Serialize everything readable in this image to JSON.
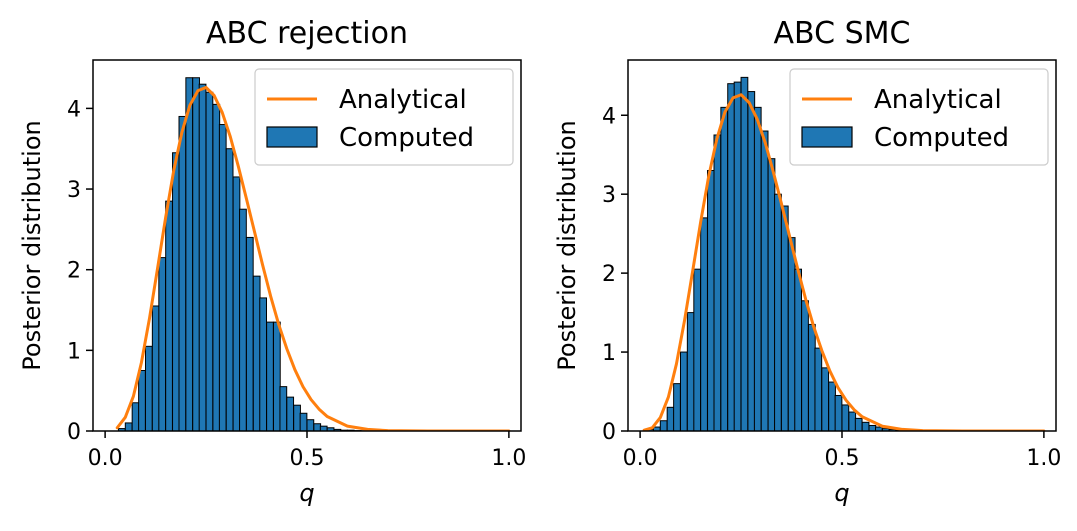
{
  "chart_data": [
    {
      "type": "bar",
      "title": "ABC rejection",
      "xlabel": "q",
      "ylabel": "Posterior distribution",
      "xlim": [
        -0.03,
        1.03
      ],
      "ylim": [
        0,
        4.6
      ],
      "xticks": [
        0.0,
        0.5,
        1.0
      ],
      "xtick_labels": [
        "0.0",
        "0.5",
        "1.0"
      ],
      "yticks": [
        0,
        1,
        2,
        3,
        4
      ],
      "ytick_labels": [
        "0",
        "1",
        "2",
        "3",
        "4"
      ],
      "legend_position": "top-right",
      "series": [
        {
          "name": "Computed",
          "kind": "histogram",
          "color": "#1f77b4",
          "bin_width": 0.0167,
          "bin_starts": [
            0.033,
            0.05,
            0.067,
            0.083,
            0.1,
            0.117,
            0.133,
            0.15,
            0.167,
            0.183,
            0.2,
            0.217,
            0.233,
            0.25,
            0.267,
            0.283,
            0.3,
            0.317,
            0.333,
            0.35,
            0.367,
            0.383,
            0.4,
            0.417,
            0.433,
            0.45,
            0.467,
            0.483,
            0.5,
            0.517,
            0.533,
            0.55,
            0.567,
            0.583,
            0.6,
            0.617,
            0.633,
            0.65,
            0.667,
            0.683
          ],
          "values": [
            0.03,
            0.1,
            0.35,
            0.75,
            1.05,
            1.55,
            2.15,
            2.85,
            3.45,
            3.9,
            4.38,
            4.38,
            4.3,
            4.2,
            4.05,
            3.8,
            3.5,
            3.15,
            2.75,
            2.4,
            1.92,
            1.65,
            1.35,
            1.35,
            0.55,
            0.42,
            0.32,
            0.22,
            0.14,
            0.09,
            0.06,
            0.04,
            0.02,
            0.01,
            0.01,
            0.005,
            0.003,
            0.002,
            0.001,
            0.001
          ]
        },
        {
          "name": "Analytical",
          "kind": "line",
          "color": "#ff7f0e",
          "x": [
            0.03,
            0.05,
            0.07,
            0.09,
            0.11,
            0.13,
            0.15,
            0.17,
            0.19,
            0.21,
            0.23,
            0.25,
            0.27,
            0.29,
            0.31,
            0.33,
            0.35,
            0.37,
            0.39,
            0.41,
            0.43,
            0.45,
            0.47,
            0.49,
            0.51,
            0.53,
            0.55,
            0.6,
            0.65,
            0.7,
            0.8,
            0.9,
            1.0
          ],
          "y": [
            0.04,
            0.17,
            0.43,
            0.85,
            1.4,
            2.02,
            2.65,
            3.23,
            3.7,
            4.04,
            4.22,
            4.26,
            4.16,
            3.95,
            3.65,
            3.28,
            2.88,
            2.47,
            2.06,
            1.67,
            1.32,
            1.02,
            0.76,
            0.55,
            0.39,
            0.27,
            0.18,
            0.06,
            0.02,
            0.005,
            0.0,
            0.0,
            0.0
          ]
        }
      ]
    },
    {
      "type": "bar",
      "title": "ABC SMC",
      "xlabel": "q",
      "ylabel": "Posterior distribution",
      "xlim": [
        -0.03,
        1.03
      ],
      "ylim": [
        0,
        4.7
      ],
      "xticks": [
        0.0,
        0.5,
        1.0
      ],
      "xtick_labels": [
        "0.0",
        "0.5",
        "1.0"
      ],
      "yticks": [
        0,
        1,
        2,
        3,
        4
      ],
      "ytick_labels": [
        "0",
        "1",
        "2",
        "3",
        "4"
      ],
      "legend_position": "top-right",
      "series": [
        {
          "name": "Computed",
          "kind": "histogram",
          "color": "#1f77b4",
          "bin_width": 0.0167,
          "bin_starts": [
            0.017,
            0.033,
            0.05,
            0.067,
            0.083,
            0.1,
            0.117,
            0.133,
            0.15,
            0.167,
            0.183,
            0.2,
            0.217,
            0.233,
            0.25,
            0.267,
            0.283,
            0.3,
            0.317,
            0.333,
            0.35,
            0.367,
            0.383,
            0.4,
            0.417,
            0.433,
            0.45,
            0.467,
            0.483,
            0.5,
            0.517,
            0.533,
            0.55,
            0.567,
            0.583,
            0.6,
            0.617,
            0.633,
            0.65,
            0.667
          ],
          "values": [
            0.02,
            0.05,
            0.13,
            0.3,
            0.6,
            1.0,
            1.5,
            2.05,
            2.7,
            3.3,
            3.75,
            4.1,
            4.4,
            4.42,
            4.48,
            4.3,
            4.1,
            3.8,
            3.45,
            3.0,
            2.85,
            2.45,
            2.05,
            1.65,
            1.35,
            1.05,
            0.8,
            0.62,
            0.45,
            0.33,
            0.24,
            0.16,
            0.11,
            0.07,
            0.05,
            0.03,
            0.02,
            0.01,
            0.005,
            0.003
          ]
        },
        {
          "name": "Analytical",
          "kind": "line",
          "color": "#ff7f0e",
          "x": [
            0.01,
            0.03,
            0.05,
            0.07,
            0.09,
            0.11,
            0.13,
            0.15,
            0.17,
            0.19,
            0.21,
            0.23,
            0.25,
            0.27,
            0.29,
            0.31,
            0.33,
            0.35,
            0.37,
            0.39,
            0.41,
            0.43,
            0.45,
            0.47,
            0.49,
            0.51,
            0.53,
            0.55,
            0.6,
            0.65,
            0.7,
            0.8,
            0.9,
            1.0
          ],
          "y": [
            0.01,
            0.04,
            0.17,
            0.43,
            0.85,
            1.4,
            2.02,
            2.65,
            3.23,
            3.7,
            4.04,
            4.22,
            4.26,
            4.16,
            3.95,
            3.65,
            3.28,
            2.88,
            2.47,
            2.06,
            1.67,
            1.32,
            1.02,
            0.76,
            0.55,
            0.39,
            0.27,
            0.18,
            0.06,
            0.02,
            0.005,
            0.0,
            0.0,
            0.0
          ]
        }
      ]
    }
  ]
}
